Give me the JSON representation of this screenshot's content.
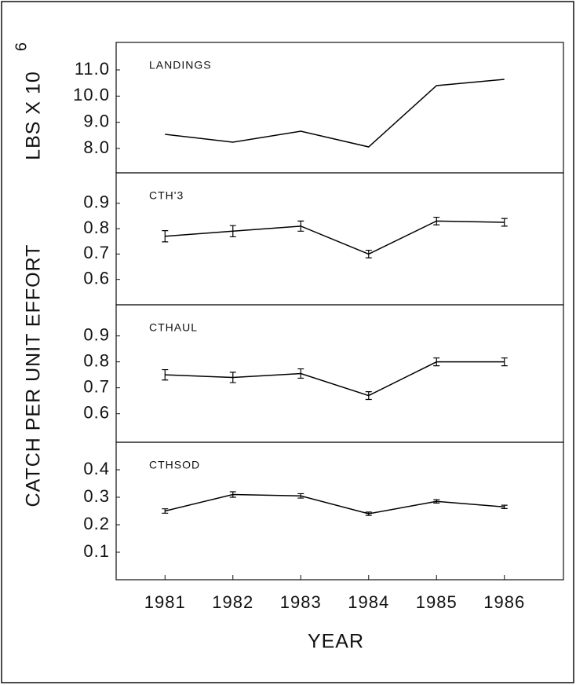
{
  "chart_data": [
    {
      "type": "line",
      "title": "LANDINGS",
      "y_label": "LBS X 10",
      "y_label_exponent": "6",
      "x": [
        1981,
        1982,
        1983,
        1984,
        1985,
        1986
      ],
      "xlim": [
        1980.28,
        1986.87
      ],
      "series": [
        {
          "color": "#000000",
          "values": [
            8.54,
            8.24,
            8.66,
            8.06,
            10.4,
            10.64
          ]
        }
      ],
      "ylim": [
        7.07,
        12.05
      ],
      "yticks": [
        {
          "value": 8,
          "label": "8.0"
        },
        {
          "value": 9,
          "label": "9.0"
        },
        {
          "value": 10,
          "label": "10.0"
        },
        {
          "value": 11,
          "label": "11.0"
        }
      ]
    },
    {
      "type": "line",
      "title": "CTH'3",
      "y_label": "CATCH PER UNIT EFFORT",
      "x": [
        1981,
        1982,
        1983,
        1984,
        1985,
        1986
      ],
      "xlim": [
        1980.28,
        1986.87
      ],
      "series": [
        {
          "color": "#000000",
          "values": [
            0.77,
            0.79,
            0.81,
            0.7,
            0.83,
            0.825
          ],
          "errors": [
            0.022,
            0.022,
            0.02,
            0.015,
            0.015,
            0.015
          ]
        }
      ],
      "ylim": [
        0.5,
        1.02
      ],
      "yticks": [
        0.6,
        0.7,
        0.8,
        0.9
      ]
    },
    {
      "type": "line",
      "title": "CTHAUL",
      "x": [
        1981,
        1982,
        1983,
        1984,
        1985,
        1986
      ],
      "xlim": [
        1980.28,
        1986.87
      ],
      "series": [
        {
          "color": "#000000",
          "values": [
            0.75,
            0.74,
            0.755,
            0.67,
            0.8,
            0.8
          ],
          "errors": [
            0.02,
            0.02,
            0.018,
            0.015,
            0.015,
            0.015
          ]
        }
      ],
      "ylim": [
        0.49,
        1.02
      ],
      "yticks": [
        0.6,
        0.7,
        0.8,
        0.9
      ]
    },
    {
      "type": "line",
      "title": "CTHSOD",
      "x_label": "YEAR",
      "x": [
        1981,
        1982,
        1983,
        1984,
        1985,
        1986
      ],
      "xlim": [
        1980.28,
        1986.87
      ],
      "xticks": [
        1981,
        1982,
        1983,
        1984,
        1985,
        1986
      ],
      "series": [
        {
          "color": "#000000",
          "values": [
            0.25,
            0.31,
            0.305,
            0.24,
            0.285,
            0.265
          ],
          "errors": [
            0.008,
            0.01,
            0.008,
            0.006,
            0.006,
            0.006
          ]
        }
      ],
      "ylim": [
        0,
        0.5
      ],
      "yticks": [
        0.1,
        0.2,
        0.3,
        0.4
      ]
    }
  ]
}
